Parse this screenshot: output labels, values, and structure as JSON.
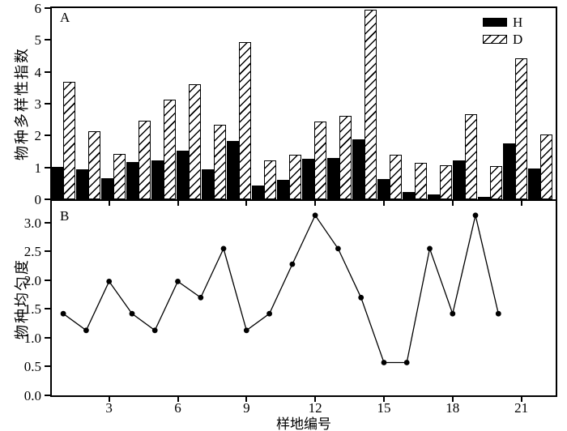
{
  "figure": {
    "background": "#ffffff",
    "foreground": "#000000",
    "xlabel": "样地编号"
  },
  "chart_data": [
    {
      "type": "bar",
      "panel_label": "A",
      "title": "",
      "ylabel": "物种多样性指数",
      "xlabel": "样地编号",
      "ylim": [
        0,
        6
      ],
      "ytick_labels": [
        "0",
        "1",
        "2",
        "3",
        "4",
        "5",
        "6"
      ],
      "xlim": [
        0.5,
        22.5
      ],
      "xtick_labels": [
        "3",
        "6",
        "9",
        "12",
        "15",
        "18",
        "21"
      ],
      "grid": false,
      "legend_position": "top-right",
      "categories": [
        1,
        2,
        3,
        4,
        5,
        6,
        7,
        8,
        9,
        10,
        11,
        12,
        13,
        14,
        15,
        16,
        17,
        18,
        19,
        20
      ],
      "series": [
        {
          "name": "H",
          "style": "solid-black",
          "values": [
            1.02,
            0.95,
            0.66,
            1.17,
            1.23,
            1.52,
            0.95,
            1.82,
            0.42,
            0.6,
            1.26,
            1.3,
            1.88,
            0.64,
            0.22,
            0.16,
            1.22,
            0.08,
            1.75,
            0.97
          ]
        },
        {
          "name": "D",
          "style": "diagonal-hatch",
          "values": [
            3.68,
            2.13,
            1.43,
            2.47,
            3.12,
            3.62,
            2.33,
            4.93,
            1.22,
            1.4,
            2.43,
            2.62,
            5.95,
            1.41,
            1.15,
            1.06,
            2.68,
            1.04,
            4.43,
            2.03
          ]
        }
      ]
    },
    {
      "type": "line",
      "panel_label": "B",
      "title": "",
      "ylabel": "物种均匀度",
      "xlabel": "样地编号",
      "ylim": [
        0,
        3.38
      ],
      "ytick_labels": [
        "0.0",
        "0.5",
        "1.0",
        "1.5",
        "2.0",
        "2.5",
        "3.0"
      ],
      "xlim": [
        0.5,
        22.5
      ],
      "xtick_labels": [
        "3",
        "6",
        "9",
        "12",
        "15",
        "18",
        "21"
      ],
      "grid": false,
      "marker": "filled-circle",
      "line_color": "#000000",
      "x": [
        1,
        2,
        3,
        4,
        5,
        6,
        7,
        8,
        9,
        10,
        11,
        12,
        13,
        14,
        15,
        16,
        17,
        18,
        19,
        20
      ],
      "values": [
        1.42,
        1.13,
        1.98,
        1.42,
        1.13,
        1.98,
        1.7,
        2.55,
        1.13,
        1.42,
        2.28,
        3.13,
        2.55,
        1.7,
        0.57,
        0.57,
        2.55,
        1.42,
        3.13,
        1.42
      ]
    }
  ]
}
